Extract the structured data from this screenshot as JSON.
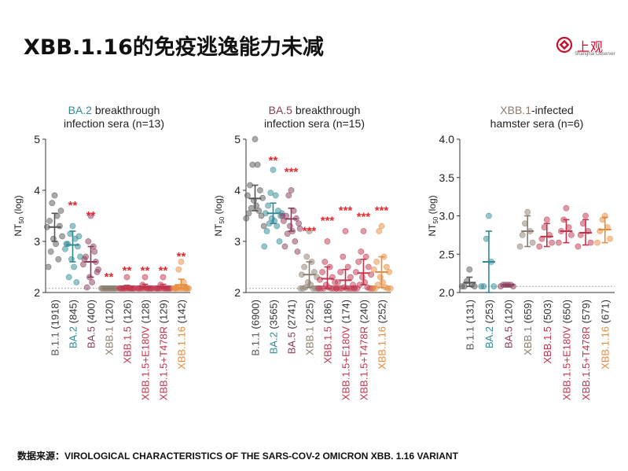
{
  "page": {
    "title": "XBB.1.16的免疫逃逸能力未减"
  },
  "logo": {
    "name": "上观",
    "sub": "Shanghai Observer"
  },
  "footer": {
    "source": "数据来源：VIROLOGICAL CHARACTERISTICS OF THE SARS-COV-2 OMICRON XBB. 1.16 VARIANT"
  },
  "colors": {
    "B.1.1": "#555555",
    "BA.2": "#2f8a94",
    "BA.5": "#8a3c5c",
    "XBB.1": "#8b7d6e",
    "XBB.1.5": "#c0354d",
    "XBB.1.16": "#e68b3a",
    "significance": "#e8262d"
  },
  "chart_data": [
    {
      "type": "scatter",
      "title_strain": "BA.2",
      "title_rest": " breakthrough",
      "title_line2": "infection sera (n=13)",
      "ylabel": "NT50 (log)",
      "ylim": [
        2,
        5
      ],
      "yticks": [
        "2",
        "3",
        "4",
        "5"
      ],
      "detection_limit": 2.08,
      "categories": [
        "B.1.1 (1918)",
        "BA.2 (845)",
        "BA.5 (400)",
        "XBB.1 (120)",
        "XBB.1.5 (126)",
        "XBB.1.5+E180V (128)",
        "XBB.1.5+T478R (129)",
        "XBB.1.16 (142)"
      ],
      "category_colors": [
        "#555555",
        "#2f8a94",
        "#8a3c5c",
        "#8b7d6e",
        "#c0354d",
        "#c0354d",
        "#c0354d",
        "#e68b3a"
      ],
      "medians": [
        3.28,
        2.93,
        2.6,
        2.08,
        2.1,
        2.11,
        2.11,
        2.15
      ],
      "errors": [
        [
          3.0,
          3.55
        ],
        [
          2.6,
          3.2
        ],
        [
          2.3,
          2.9
        ],
        [
          2.08,
          2.09
        ],
        [
          2.08,
          2.14
        ],
        [
          2.08,
          2.16
        ],
        [
          2.08,
          2.16
        ],
        [
          2.08,
          2.26
        ]
      ],
      "points": [
        [
          3.9,
          3.75,
          3.5,
          3.4,
          3.3,
          3.28,
          3.1,
          3.05,
          2.95,
          2.8,
          2.65,
          2.5,
          3.6
        ],
        [
          3.3,
          3.15,
          3.05,
          2.95,
          2.9,
          2.85,
          2.7,
          2.65,
          2.5,
          2.3,
          2.2,
          2.95,
          3.1
        ],
        [
          3.5,
          3.0,
          2.9,
          2.7,
          2.6,
          2.55,
          2.45,
          2.3,
          2.2,
          2.1,
          2.8,
          2.65,
          2.4
        ],
        [
          2.08,
          2.08,
          2.08,
          2.08,
          2.08,
          2.08,
          2.08,
          2.08,
          2.08,
          2.08,
          2.08,
          2.08,
          2.08
        ],
        [
          2.3,
          2.08,
          2.08,
          2.08,
          2.08,
          2.08,
          2.08,
          2.08,
          2.08,
          2.08,
          2.08,
          2.08,
          2.08
        ],
        [
          2.3,
          2.15,
          2.08,
          2.08,
          2.08,
          2.08,
          2.08,
          2.08,
          2.08,
          2.08,
          2.08,
          2.08,
          2.08
        ],
        [
          2.3,
          2.15,
          2.08,
          2.08,
          2.08,
          2.08,
          2.08,
          2.08,
          2.08,
          2.08,
          2.08,
          2.08,
          2.08
        ],
        [
          2.6,
          2.45,
          2.2,
          2.08,
          2.08,
          2.08,
          2.08,
          2.08,
          2.08,
          2.08,
          2.08,
          2.08,
          2.08
        ]
      ],
      "significance": [
        "",
        "**",
        "**",
        "**",
        "**",
        "**",
        "**",
        "**"
      ],
      "significance_y": [
        0,
        3.72,
        3.52,
        2.32,
        2.45,
        2.45,
        2.45,
        2.72
      ]
    },
    {
      "type": "scatter",
      "title_strain": "BA.5",
      "title_rest": " breakthrough",
      "title_line2": "infection sera (n=15)",
      "ylabel": "NT50 (log)",
      "ylim": [
        2,
        5
      ],
      "yticks": [
        "2",
        "3",
        "4",
        "5"
      ],
      "detection_limit": 2.08,
      "categories": [
        "B.1.1 (6900)",
        "BA.2 (3565)",
        "BA.5 (2741)",
        "XBB.1 (225)",
        "XBB.1.5 (186)",
        "XBB.1.5+E180V (174)",
        "XBB.1.5+T478R (240)",
        "XBB.1.16 (252)"
      ],
      "category_colors": [
        "#555555",
        "#2f8a94",
        "#8a3c5c",
        "#8b7d6e",
        "#c0354d",
        "#c0354d",
        "#c0354d",
        "#e68b3a"
      ],
      "medians": [
        3.84,
        3.55,
        3.44,
        2.35,
        2.27,
        2.24,
        2.38,
        2.4
      ],
      "errors": [
        [
          3.6,
          4.1
        ],
        [
          3.35,
          3.75
        ],
        [
          3.2,
          3.65
        ],
        [
          2.1,
          2.6
        ],
        [
          2.08,
          2.5
        ],
        [
          2.08,
          2.45
        ],
        [
          2.15,
          2.65
        ],
        [
          2.1,
          2.7
        ]
      ],
      "points": [
        [
          5.0,
          4.5,
          4.5,
          4.1,
          4.0,
          3.9,
          3.85,
          3.8,
          3.7,
          3.65,
          3.6,
          3.55,
          3.5,
          3.45,
          3.3
        ],
        [
          4.4,
          3.95,
          3.9,
          3.7,
          3.6,
          3.55,
          3.5,
          3.45,
          3.4,
          3.35,
          3.3,
          3.2,
          3.0,
          2.9,
          3.55
        ],
        [
          4.0,
          3.9,
          3.6,
          3.5,
          3.45,
          3.4,
          3.35,
          3.3,
          3.2,
          3.15,
          3.0,
          2.9,
          2.8,
          3.5,
          3.25
        ],
        [
          3.2,
          2.7,
          2.6,
          2.5,
          2.4,
          2.35,
          2.3,
          2.2,
          2.15,
          2.1,
          2.08,
          2.08,
          2.08,
          2.08,
          2.08
        ],
        [
          3.0,
          2.6,
          2.5,
          2.4,
          2.3,
          2.25,
          2.2,
          2.15,
          2.1,
          2.08,
          2.08,
          2.08,
          2.08,
          2.08,
          2.08
        ],
        [
          3.2,
          2.7,
          2.5,
          2.4,
          2.3,
          2.2,
          2.15,
          2.1,
          2.08,
          2.08,
          2.08,
          2.08,
          2.08,
          2.08,
          2.08
        ],
        [
          3.2,
          2.8,
          2.7,
          2.6,
          2.5,
          2.4,
          2.35,
          2.3,
          2.2,
          2.15,
          2.1,
          2.08,
          2.08,
          2.08,
          2.08
        ],
        [
          3.3,
          3.2,
          2.7,
          2.6,
          2.5,
          2.45,
          2.4,
          2.3,
          2.2,
          2.15,
          2.1,
          2.08,
          2.08,
          2.08,
          2.08
        ]
      ],
      "significance": [
        "",
        "**",
        "***",
        "***",
        "***",
        "***",
        "***",
        "***"
      ],
      "significance_y": [
        0,
        4.6,
        4.38,
        3.22,
        3.42,
        3.62,
        3.5,
        3.62
      ]
    },
    {
      "type": "scatter",
      "title_strain": "XBB.1",
      "title_rest": "-infected",
      "title_line2": "hamster sera (n=6)",
      "ylabel": "NT50 (log)",
      "ylim": [
        2,
        4
      ],
      "yticks": [
        "2.0",
        "2.5",
        "3.0",
        "3.5",
        "4.0"
      ],
      "detection_limit": 2.08,
      "categories": [
        "B.1.1 (131)",
        "BA.2 (253)",
        "BA.5 (120)",
        "XBB.1 (659)",
        "XBB.1.5 (503)",
        "XBB.1.5+E180V (650)",
        "XBB.1.5+T478R (579)",
        "XBB.1.16 (671)"
      ],
      "category_colors": [
        "#555555",
        "#2f8a94",
        "#8a3c5c",
        "#8b7d6e",
        "#c0354d",
        "#c0354d",
        "#c0354d",
        "#e68b3a"
      ],
      "medians": [
        2.13,
        2.4,
        2.1,
        2.8,
        2.73,
        2.8,
        2.78,
        2.82
      ],
      "errors": [
        [
          2.08,
          2.2
        ],
        [
          2.0,
          2.8
        ],
        [
          2.08,
          2.1
        ],
        [
          2.6,
          3.0
        ],
        [
          2.6,
          2.9
        ],
        [
          2.65,
          2.95
        ],
        [
          2.62,
          2.95
        ],
        [
          2.65,
          2.98
        ]
      ],
      "points": [
        [
          2.3,
          2.15,
          2.1,
          2.08,
          2.08,
          2.08
        ],
        [
          3.0,
          2.7,
          2.4,
          2.08,
          2.08,
          2.08
        ],
        [
          2.1,
          2.1,
          2.1,
          2.1,
          2.08,
          2.08
        ],
        [
          3.05,
          2.9,
          2.8,
          2.75,
          2.65,
          2.6
        ],
        [
          2.95,
          2.85,
          2.75,
          2.7,
          2.65,
          2.6
        ],
        [
          3.1,
          2.95,
          2.85,
          2.8,
          2.75,
          2.65
        ],
        [
          3.0,
          2.9,
          2.8,
          2.75,
          2.65,
          2.6
        ],
        [
          3.0,
          2.95,
          2.85,
          2.8,
          2.7,
          2.65
        ]
      ],
      "significance": [
        "",
        "",
        "",
        "",
        "",
        "",
        "",
        ""
      ],
      "significance_y": [
        0,
        0,
        0,
        0,
        0,
        0,
        0,
        0
      ]
    }
  ]
}
